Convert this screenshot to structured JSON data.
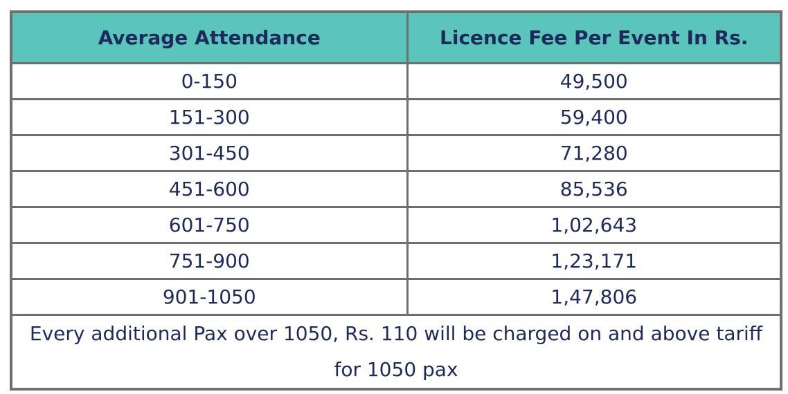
{
  "header": {
    "col_attendance": "Average Attendance",
    "col_fee": "Licence Fee Per Event In Rs."
  },
  "rows": [
    {
      "attendance": "0-150",
      "fee": "49,500"
    },
    {
      "attendance": "151-300",
      "fee": "59,400"
    },
    {
      "attendance": "301-450",
      "fee": "71,280"
    },
    {
      "attendance": "451-600",
      "fee": "85,536"
    },
    {
      "attendance": "601-750",
      "fee": "1,02,643"
    },
    {
      "attendance": "751-900",
      "fee": "1,23,171"
    },
    {
      "attendance": "901-1050",
      "fee": "1,47,806"
    }
  ],
  "footer_note": "Every additional Pax over 1050, Rs. 110 will be charged on and above tariff for 1050 pax",
  "colors": {
    "header_bg": "#5bc4bb",
    "text": "#1f2a5c",
    "border": "#6f6f6f"
  }
}
